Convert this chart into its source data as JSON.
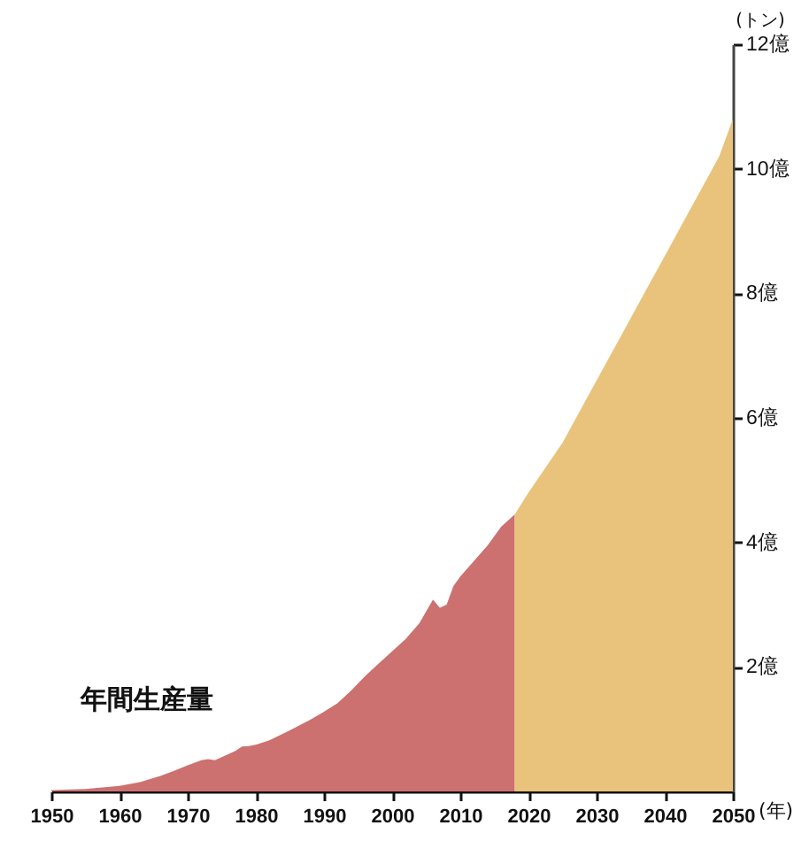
{
  "chart_data": {
    "type": "area",
    "xlabel": "(年)",
    "ylabel": "(トン)",
    "series": [
      {
        "color": "#cd7070",
        "x": [
          1950,
          1955,
          1960,
          1963,
          1966,
          1968,
          1970,
          1972,
          1973,
          1974,
          1975,
          1977,
          1978,
          1979,
          1980,
          1982,
          1985,
          1988,
          1990,
          1992,
          1994,
          1996,
          1998,
          2000,
          2002,
          2004,
          2006,
          2007,
          2008,
          2009,
          2010,
          2012,
          2014,
          2016,
          2018
        ],
        "values": [
          0.02,
          0.04,
          0.09,
          0.15,
          0.25,
          0.33,
          0.42,
          0.5,
          0.52,
          0.5,
          0.55,
          0.65,
          0.72,
          0.73,
          0.75,
          0.82,
          0.98,
          1.15,
          1.28,
          1.42,
          1.62,
          1.85,
          2.05,
          2.25,
          2.45,
          2.7,
          3.08,
          2.95,
          3.0,
          3.3,
          3.45,
          3.7,
          3.95,
          4.25,
          4.45
        ]
      },
      {
        "color": "#e9c37b",
        "x": [
          2018,
          2020,
          2025,
          2027,
          2030,
          2035,
          2037,
          2040,
          2045,
          2048,
          2050
        ],
        "values": [
          4.45,
          4.8,
          5.6,
          6.0,
          6.6,
          7.6,
          8.0,
          8.6,
          9.6,
          10.2,
          10.8
        ]
      }
    ],
    "xlim": [
      1950,
      2050
    ],
    "xticks": [
      1950,
      1960,
      1970,
      1980,
      1990,
      2000,
      2010,
      2020,
      2030,
      2040,
      2050
    ],
    "ylim": [
      0,
      12
    ],
    "yticks": [
      {
        "value": 2,
        "label": "2億"
      },
      {
        "value": 4,
        "label": "4億"
      },
      {
        "value": 6,
        "label": "6億"
      },
      {
        "value": 8,
        "label": "8億"
      },
      {
        "value": 10,
        "label": "10億"
      },
      {
        "value": 12,
        "label": "12億"
      }
    ],
    "annotations": [
      "年間生産量"
    ]
  }
}
